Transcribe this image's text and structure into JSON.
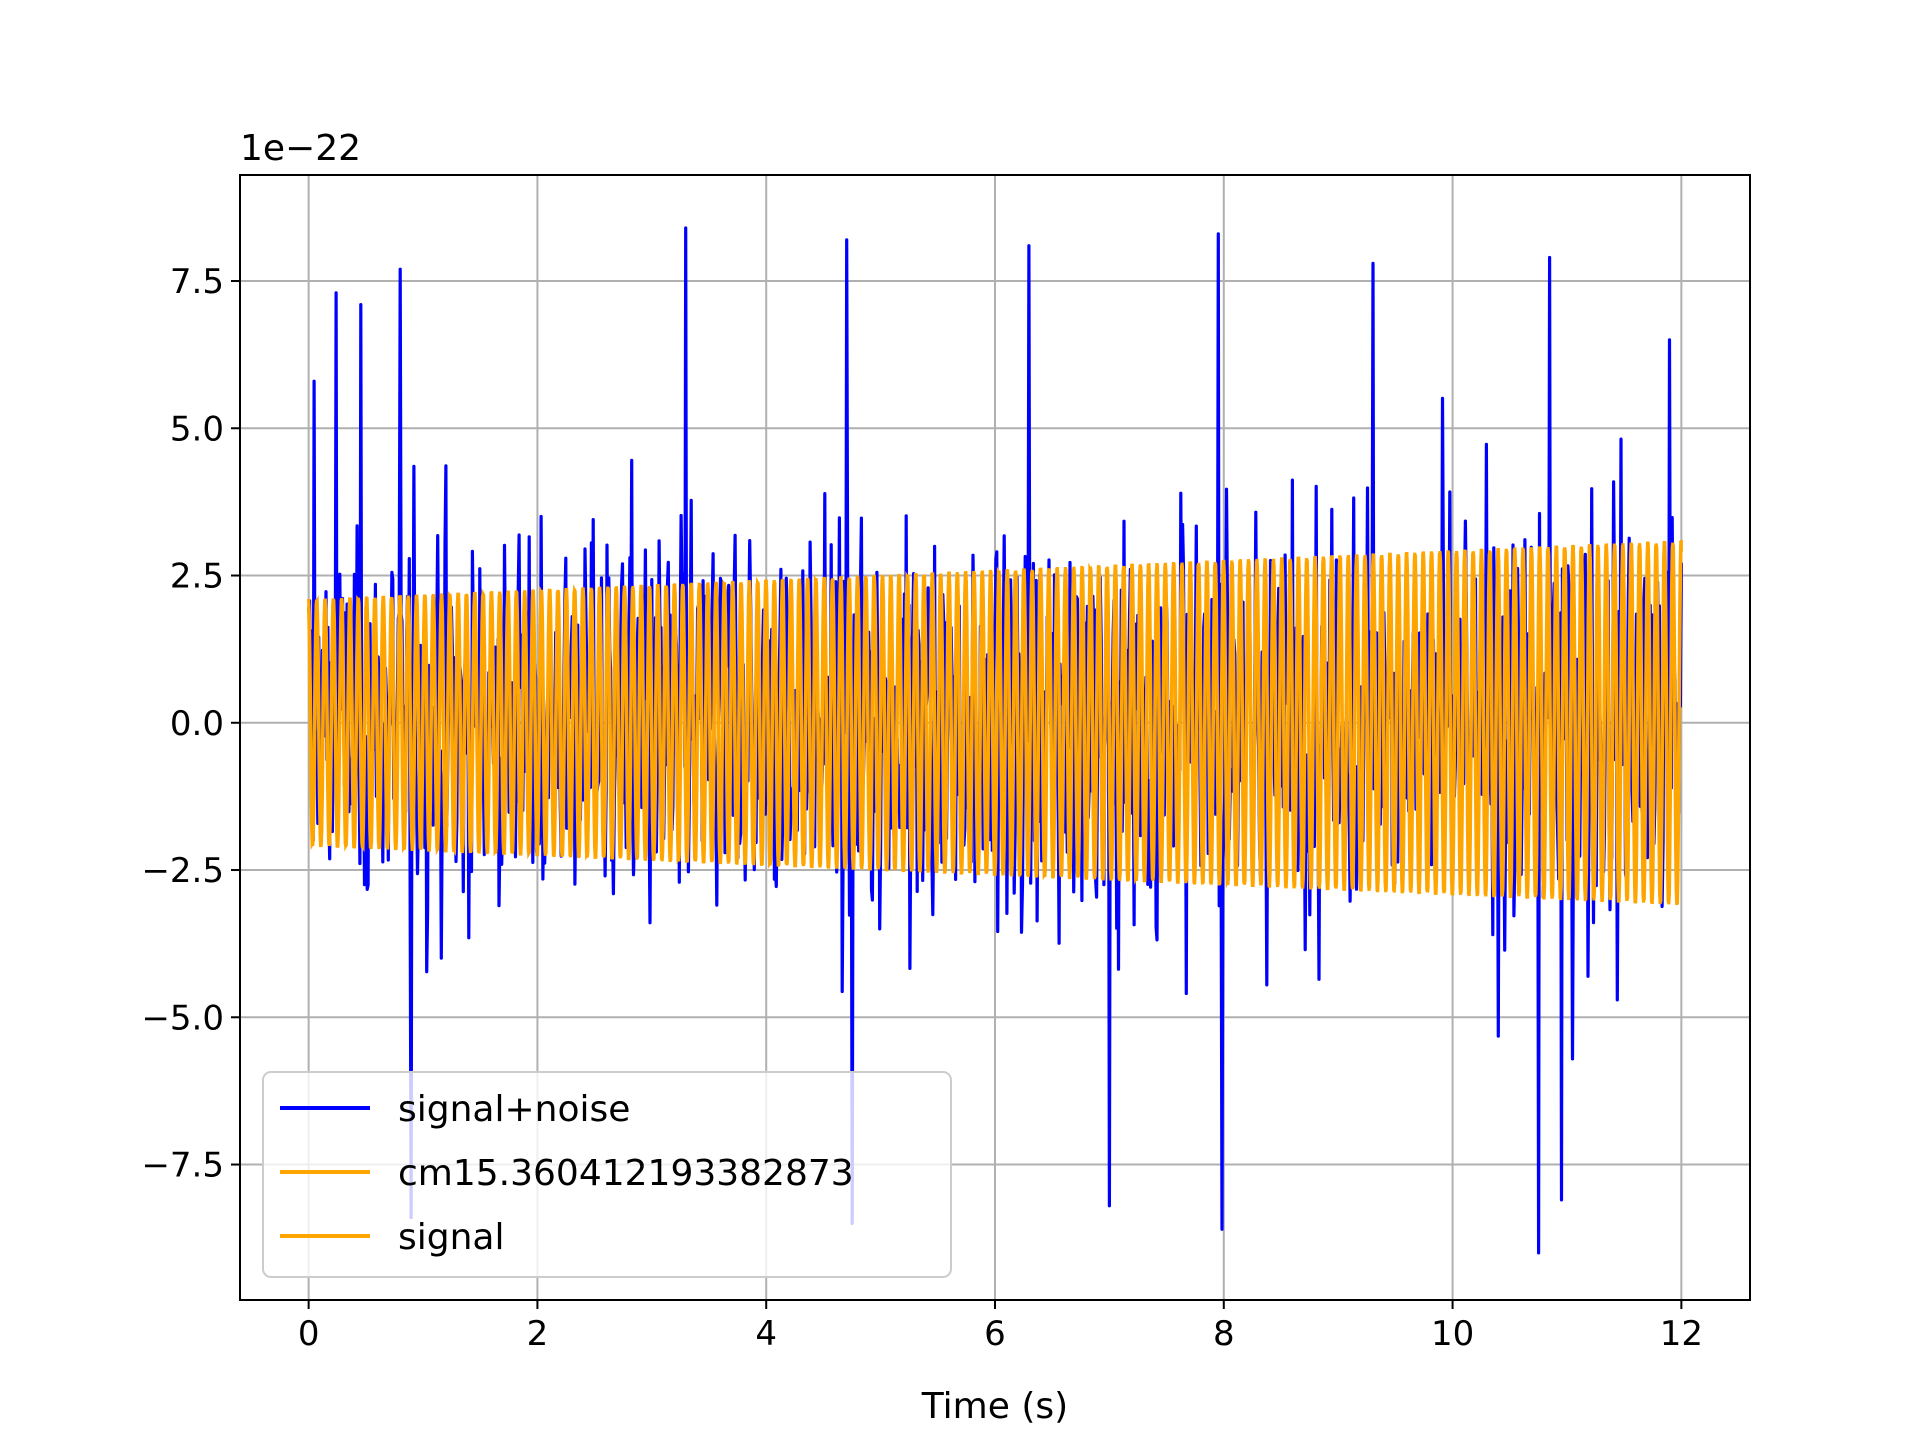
{
  "chart_data": {
    "type": "line",
    "title": "",
    "xlabel": "Time (s)",
    "ylabel": "",
    "y_offset_text": "1e−22",
    "xlim": [
      -0.6,
      12.6
    ],
    "ylim": [
      -9.8,
      9.3
    ],
    "xticks": [
      0,
      2,
      4,
      6,
      8,
      10,
      12
    ],
    "xtick_labels": [
      "0",
      "2",
      "4",
      "6",
      "8",
      "10",
      "12"
    ],
    "yticks": [
      -7.5,
      -5.0,
      -2.5,
      0.0,
      2.5,
      5.0,
      7.5
    ],
    "ytick_labels": [
      "−7.5",
      "−5.0",
      "−2.5",
      "0.0",
      "2.5",
      "5.0",
      "7.5"
    ],
    "grid": true,
    "legend_position": "lower-left",
    "series": [
      {
        "name": "signal+noise",
        "color": "#0000ff",
        "x_range": [
          0,
          12
        ],
        "approx_amplitude_range": [
          -9.0,
          8.4
        ],
        "peaks": [
          {
            "x": 0.05,
            "y": 5.8
          },
          {
            "x": 0.24,
            "y": 7.3
          },
          {
            "x": 0.46,
            "y": 7.1
          },
          {
            "x": 0.8,
            "y": 7.7
          },
          {
            "x": 3.3,
            "y": 8.4
          },
          {
            "x": 4.7,
            "y": 8.2
          },
          {
            "x": 6.3,
            "y": 8.1
          },
          {
            "x": 7.95,
            "y": 8.3
          },
          {
            "x": 9.3,
            "y": 7.8
          },
          {
            "x": 10.85,
            "y": 7.9
          },
          {
            "x": 11.9,
            "y": 6.5
          }
        ],
        "troughs": [
          {
            "x": 0.9,
            "y": -8.4
          },
          {
            "x": 4.75,
            "y": -8.5
          },
          {
            "x": 7.0,
            "y": -8.2
          },
          {
            "x": 7.98,
            "y": -8.6
          },
          {
            "x": 10.75,
            "y": -9.0
          },
          {
            "x": 10.95,
            "y": -8.1
          }
        ]
      },
      {
        "name": "cm15.360412193382873",
        "color": "#ffa500",
        "x_range": [
          0,
          12
        ],
        "envelope_start": 2.1,
        "envelope_end": 3.1
      },
      {
        "name": "signal",
        "color": "#ffa500",
        "x_range": [
          0,
          12
        ],
        "envelope_start": 2.1,
        "envelope_end": 3.1
      }
    ]
  }
}
